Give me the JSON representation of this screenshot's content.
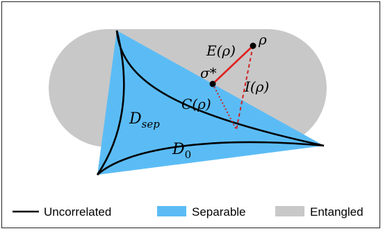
{
  "colors": {
    "entangled": "#c8c8c8",
    "separable": "#5bbcf5",
    "uncorrelated": "#000000",
    "relative_entropy": "#e02020",
    "correlation": "#d02020"
  },
  "labels": {
    "rho": "ρ",
    "sigma_star": "σ*",
    "E_rho": "E(ρ)",
    "I_rho": "I(ρ)",
    "C_rho": "C(ρ)",
    "D_sep_main": "D",
    "D_sep_sub": "sep",
    "D0_main": "D",
    "D0_sub": "0"
  },
  "legend": [
    {
      "label": "Uncorrelated",
      "swatch": "line",
      "color_key": "uncorrelated"
    },
    {
      "label": "Separable",
      "swatch": "box",
      "color_key": "separable"
    },
    {
      "label": "Entangled",
      "swatch": "box",
      "color_key": "entangled"
    }
  ]
}
